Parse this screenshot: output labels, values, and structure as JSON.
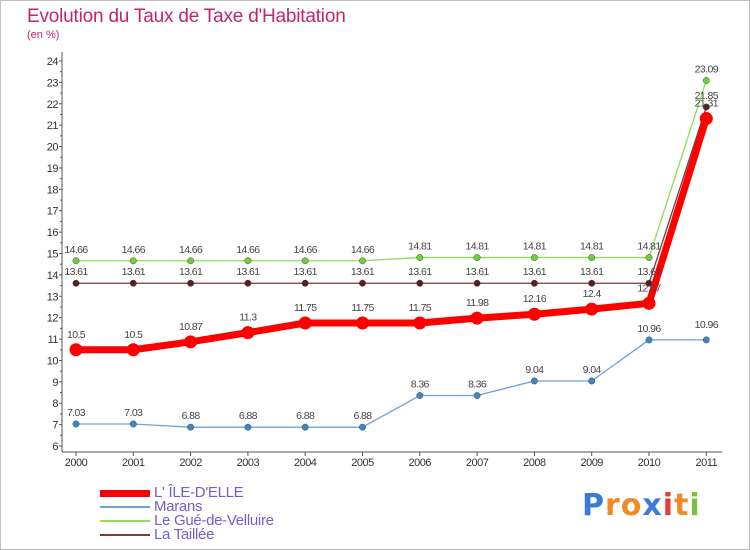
{
  "title": "Evolution du Taux de Taxe d'Habitation",
  "subtitle": "(en %)",
  "logo": {
    "letters": [
      "P",
      "r",
      "o",
      "x",
      "i",
      "t",
      "i"
    ],
    "colors": [
      "#3a7bd5",
      "#f08a24",
      "#f08a24",
      "#3a7bd5",
      "#e63b3b",
      "#f08a24",
      "#7ac143"
    ]
  },
  "chart_data": {
    "type": "line",
    "title": "Evolution du Taux de Taxe d'Habitation",
    "ylabel": "(en %)",
    "x": [
      "2000",
      "2001",
      "2002",
      "2003",
      "2004",
      "2005",
      "2006",
      "2007",
      "2008",
      "2009",
      "2010",
      "2011"
    ],
    "ylim": [
      6,
      24
    ],
    "yticks": [
      "6",
      "7",
      "8",
      "9",
      "10",
      "11",
      "12",
      "13",
      "14",
      "15",
      "16",
      "17",
      "18",
      "19",
      "20",
      "21",
      "22",
      "23",
      "24"
    ],
    "grid": false,
    "series": [
      {
        "name": "L' ÎLE-D'ELLE",
        "color": "#ff0000",
        "width": 7,
        "marker": 6.5,
        "values": [
          10.5,
          10.5,
          10.87,
          11.3,
          11.75,
          11.75,
          11.75,
          11.98,
          12.16,
          12.4,
          12.67,
          21.31
        ],
        "labels": [
          "10.5",
          "10.5",
          "10.87",
          "11.3",
          "11.75",
          "11.75",
          "11.75",
          "11.98",
          "12.16",
          "12.4",
          "12.67",
          "21.31"
        ]
      },
      {
        "name": "Marans",
        "color": "#6fa3d4",
        "width": 1.3,
        "marker": 3.2,
        "values": [
          7.03,
          7.03,
          6.88,
          6.88,
          6.88,
          6.88,
          8.36,
          8.36,
          9.04,
          9.04,
          10.96,
          10.96
        ],
        "labels": [
          "7.03",
          "7.03",
          "6.88",
          "6.88",
          "6.88",
          "6.88",
          "8.36",
          "8.36",
          "9.04",
          "9.04",
          "10.96",
          "10.96"
        ]
      },
      {
        "name": "Le Gué-de-Velluire",
        "color": "#8fdc5a",
        "width": 1.3,
        "marker": 3.2,
        "values": [
          14.66,
          14.66,
          14.66,
          14.66,
          14.66,
          14.66,
          14.81,
          14.81,
          14.81,
          14.81,
          14.81,
          23.09
        ],
        "labels": [
          "14.66",
          "14.66",
          "14.66",
          "14.66",
          "14.66",
          "14.66",
          "14.81",
          "14.81",
          "14.81",
          "14.81",
          "14.81",
          "23.09"
        ]
      },
      {
        "name": "La Taillée",
        "color": "#7a3b3b",
        "width": 1.3,
        "marker": 3.2,
        "values": [
          13.61,
          13.61,
          13.61,
          13.61,
          13.61,
          13.61,
          13.61,
          13.61,
          13.61,
          13.61,
          13.61,
          21.85
        ],
        "labels": [
          "13.61",
          "13.61",
          "13.61",
          "13.61",
          "13.61",
          "13.61",
          "13.61",
          "13.61",
          "13.61",
          "13.61",
          "13.61",
          "21.85"
        ]
      }
    ]
  }
}
